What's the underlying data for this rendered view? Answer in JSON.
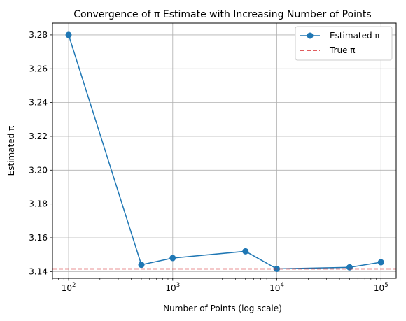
{
  "chart_data": {
    "type": "line",
    "title": "Convergence of π Estimate with Increasing Number of Points",
    "xlabel": "Number of Points (log scale)",
    "ylabel": "Estimated π",
    "xscale": "log",
    "xlim": [
      70,
      140000
    ],
    "ylim": [
      3.136,
      3.287
    ],
    "grid": true,
    "legend_position": "top-right",
    "x_ticks": [
      {
        "value": 100,
        "base": "10",
        "exp": "2"
      },
      {
        "value": 1000,
        "base": "10",
        "exp": "3"
      },
      {
        "value": 10000,
        "base": "10",
        "exp": "4"
      },
      {
        "value": 100000,
        "base": "10",
        "exp": "5"
      }
    ],
    "y_ticks": [
      "3.14",
      "3.16",
      "3.18",
      "3.20",
      "3.22",
      "3.24",
      "3.26",
      "3.28"
    ],
    "series": [
      {
        "name": "Estimated π",
        "color": "#1f77b4",
        "style": "solid",
        "marker": "circle",
        "x": [
          100,
          500,
          1000,
          5000,
          10000,
          50000,
          100000
        ],
        "y": [
          3.28,
          3.144,
          3.148,
          3.152,
          3.1416,
          3.1425,
          3.1455
        ]
      },
      {
        "name": "True π",
        "color": "#d62728",
        "style": "dashed",
        "marker": "none",
        "y_constant": 3.14159
      }
    ]
  }
}
